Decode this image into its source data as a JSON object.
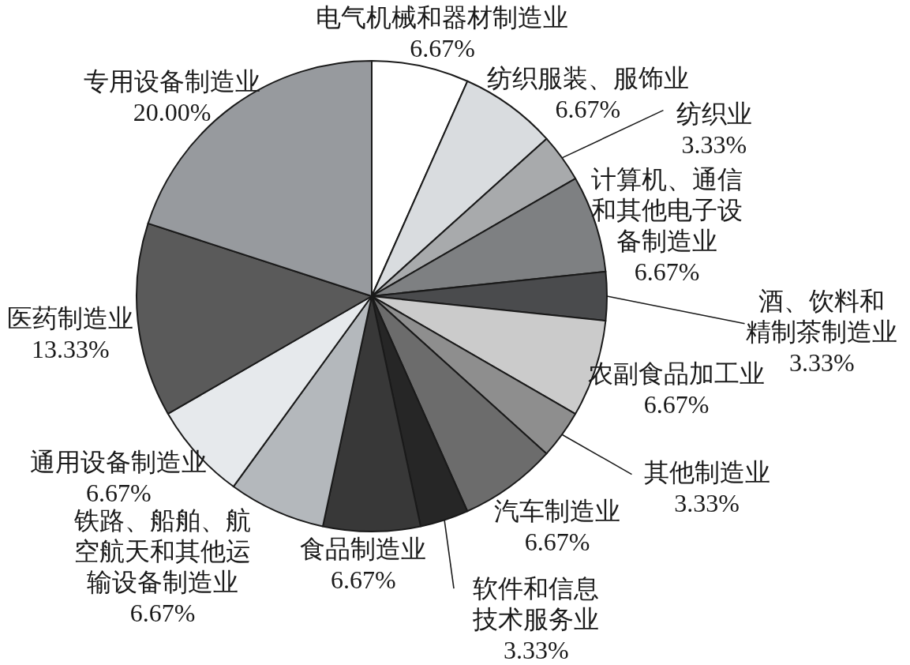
{
  "chart_data": {
    "type": "pie",
    "categories": [
      "电气机械和器材制造业",
      "纺织服装、服饰业",
      "纺织业",
      "计算机、通信和其他电子设备制造业",
      "酒、饮料和精制茶制造业",
      "农副食品加工业",
      "其他制造业",
      "汽车制造业",
      "软件和信息技术服务业",
      "食品制造业",
      "铁路、船舶、航空航天和其他运输设备制造业",
      "通用设备制造业",
      "医药制造业",
      "专用设备制造业"
    ],
    "values": [
      6.67,
      6.67,
      3.33,
      6.67,
      3.33,
      6.67,
      3.33,
      6.67,
      3.33,
      6.67,
      6.67,
      6.67,
      13.33,
      20.0
    ],
    "value_labels": [
      "6.67%",
      "6.67%",
      "3.33%",
      "6.67%",
      "3.33%",
      "6.67%",
      "3.33%",
      "6.67%",
      "3.33%",
      "6.67%",
      "6.67%",
      "6.67%",
      "13.33%",
      "20.00%"
    ],
    "colors": [
      "#ffffff",
      "#d9dcdf",
      "#a8aaac",
      "#7e8082",
      "#4a4b4d",
      "#cbcbcb",
      "#8e8e8e",
      "#6c6c6c",
      "#262626",
      "#383838",
      "#b4b8bc",
      "#e6e9ec",
      "#5a5a5a",
      "#979a9e"
    ]
  }
}
